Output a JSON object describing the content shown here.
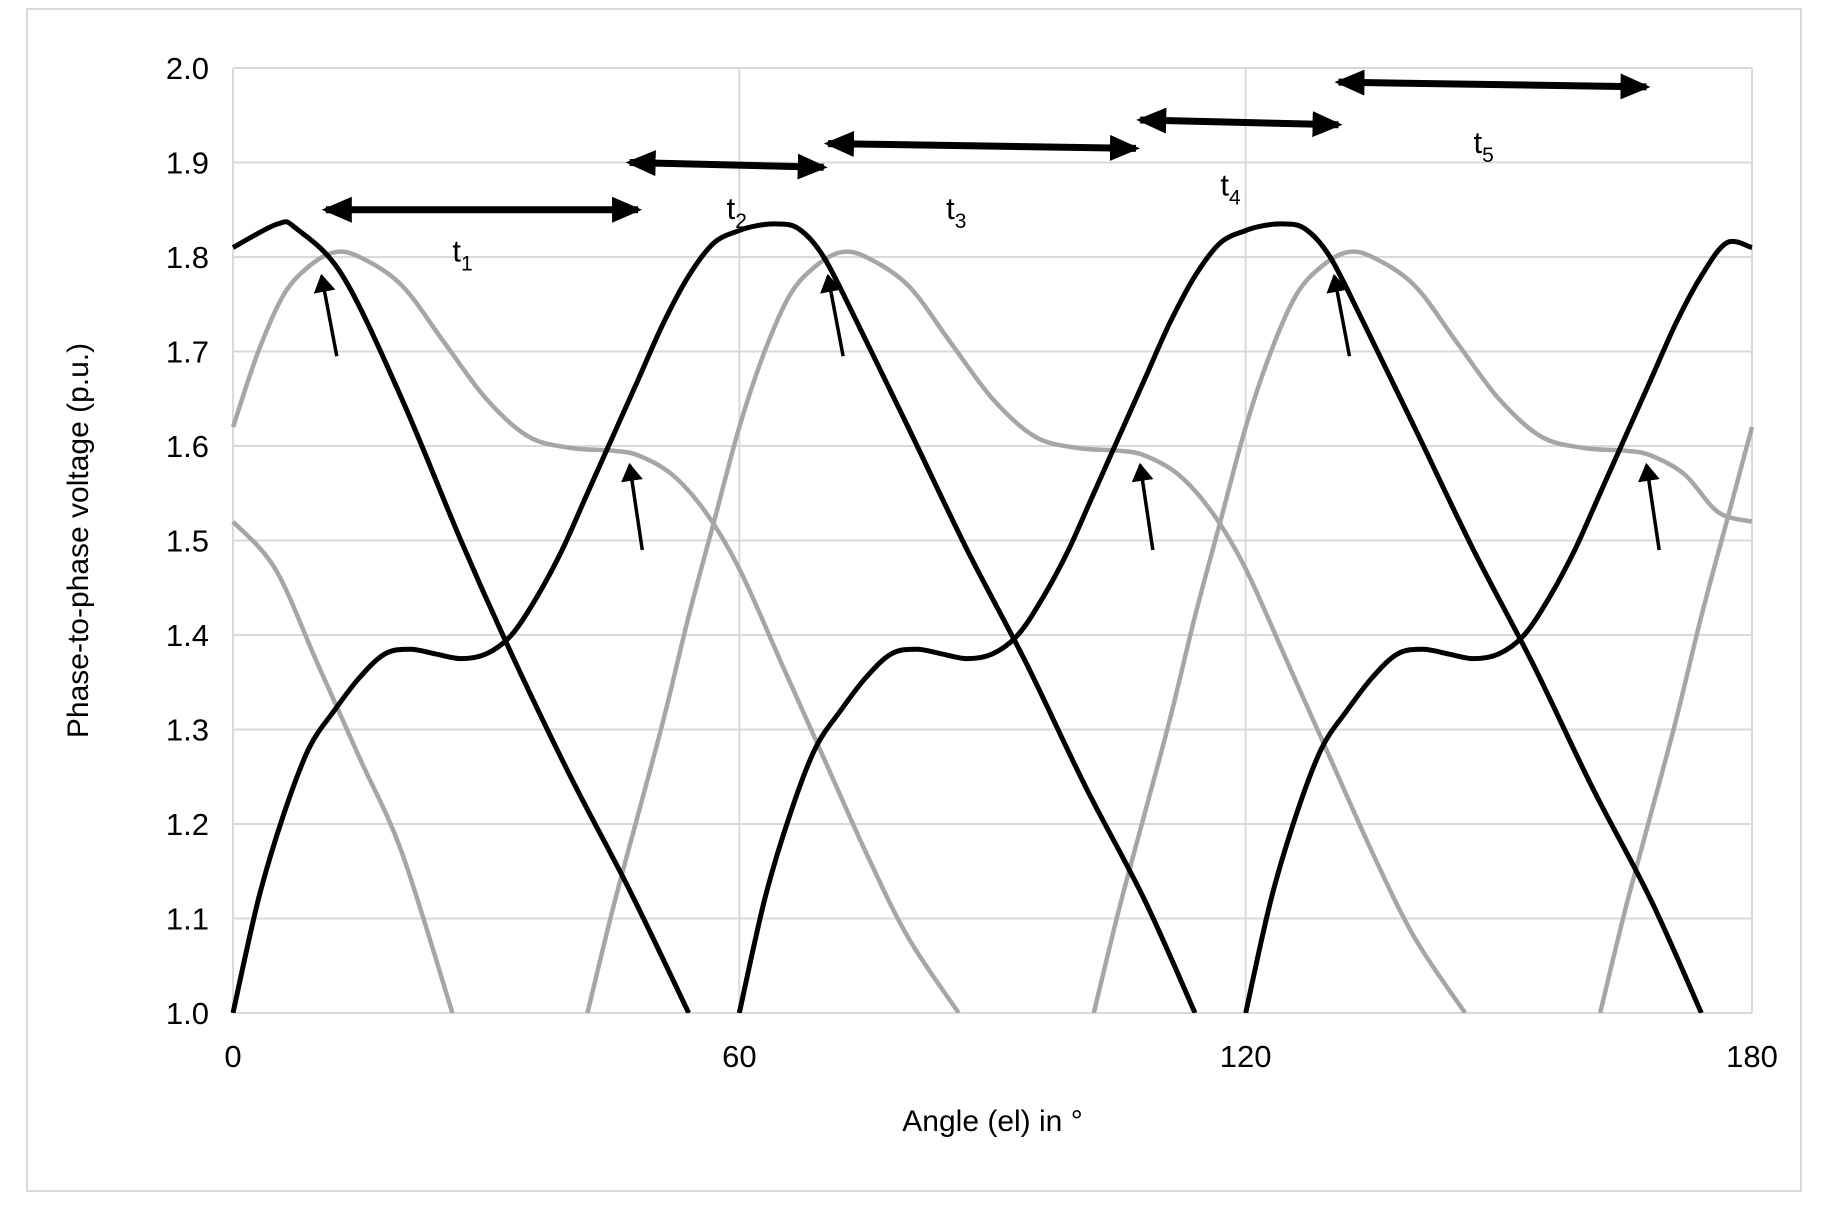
{
  "chart_data": {
    "type": "line",
    "title": "",
    "xlabel": "Angle (el) in °",
    "ylabel": "Phase-to-phase voltage (p.u.)",
    "xlim": [
      0,
      180
    ],
    "ylim": [
      1.0,
      2.0
    ],
    "x_ticks": [
      "0",
      "60",
      "120",
      "180"
    ],
    "x_tick_values": [
      0,
      60,
      120,
      180
    ],
    "y_ticks": [
      "1.0",
      "1.1",
      "1.2",
      "1.3",
      "1.4",
      "1.5",
      "1.6",
      "1.7",
      "1.8",
      "1.9",
      "2.0"
    ],
    "y_tick_values": [
      1.0,
      1.1,
      1.2,
      1.3,
      1.4,
      1.5,
      1.6,
      1.7,
      1.8,
      1.9,
      2.0
    ],
    "grid": true,
    "legend": "none",
    "colors": {
      "black": "#000000",
      "gray": "#a6a6a6",
      "grid": "#d9d9d9"
    },
    "series": [
      {
        "color": "black",
        "x": [
          0,
          5.3,
          7.5,
          13,
          20,
          27,
          33,
          40,
          47,
          54
        ],
        "y": [
          1.81,
          1.835,
          1.83,
          1.78,
          1.65,
          1.5,
          1.38,
          1.25,
          1.13,
          1.0
        ]
      },
      {
        "color": "black",
        "x": [
          0,
          3,
          6,
          9,
          12,
          15,
          18,
          21,
          24,
          27,
          30,
          33,
          36,
          39,
          42,
          45,
          48,
          51,
          54,
          57,
          60,
          62,
          64.3,
          67,
          70,
          74,
          80,
          87,
          94,
          101,
          108,
          114
        ],
        "y": [
          1.0,
          1.12,
          1.21,
          1.28,
          1.32,
          1.355,
          1.38,
          1.385,
          1.38,
          1.375,
          1.38,
          1.4,
          1.44,
          1.49,
          1.55,
          1.61,
          1.67,
          1.73,
          1.78,
          1.815,
          1.828,
          1.833,
          1.835,
          1.83,
          1.8,
          1.73,
          1.62,
          1.49,
          1.37,
          1.24,
          1.12,
          1.0
        ]
      },
      {
        "color": "black",
        "x": [
          60,
          63,
          66,
          69,
          72,
          75,
          78,
          81,
          84,
          87,
          90,
          93,
          96,
          99,
          102,
          105,
          108,
          111,
          114,
          117,
          120,
          122,
          124.3,
          127,
          130,
          134,
          140,
          147,
          154,
          161,
          168,
          174
        ],
        "y": [
          1.0,
          1.12,
          1.21,
          1.28,
          1.32,
          1.355,
          1.38,
          1.385,
          1.38,
          1.375,
          1.38,
          1.4,
          1.44,
          1.49,
          1.55,
          1.61,
          1.67,
          1.73,
          1.78,
          1.815,
          1.828,
          1.833,
          1.835,
          1.83,
          1.8,
          1.73,
          1.62,
          1.49,
          1.37,
          1.24,
          1.12,
          1.0
        ]
      },
      {
        "color": "black",
        "x": [
          120,
          123,
          126,
          129,
          132,
          135,
          138,
          141,
          144,
          147,
          150,
          153,
          156,
          159,
          162,
          165,
          168,
          171,
          174,
          177,
          180
        ],
        "y": [
          1.0,
          1.12,
          1.21,
          1.28,
          1.32,
          1.355,
          1.38,
          1.385,
          1.38,
          1.375,
          1.38,
          1.4,
          1.44,
          1.49,
          1.55,
          1.61,
          1.67,
          1.73,
          1.78,
          1.815,
          1.81
        ]
      },
      {
        "color": "gray",
        "x": [
          0,
          3,
          6,
          9,
          12,
          15,
          20,
          25,
          30,
          35,
          40,
          45,
          48,
          52,
          56,
          60,
          65,
          70,
          75,
          80,
          86
        ],
        "y": [
          1.62,
          1.7,
          1.76,
          1.79,
          1.805,
          1.8,
          1.77,
          1.71,
          1.65,
          1.61,
          1.598,
          1.595,
          1.59,
          1.57,
          1.53,
          1.47,
          1.37,
          1.27,
          1.17,
          1.08,
          1.0
        ]
      },
      {
        "color": "gray",
        "x": [
          42,
          45,
          48,
          51,
          54,
          57,
          60,
          63,
          66,
          69,
          72,
          75,
          80,
          85,
          90,
          95,
          100,
          105,
          108,
          112,
          116,
          120,
          125,
          130,
          135,
          140,
          146
        ],
        "y": [
          1.0,
          1.11,
          1.21,
          1.31,
          1.42,
          1.52,
          1.62,
          1.7,
          1.76,
          1.79,
          1.805,
          1.8,
          1.77,
          1.71,
          1.65,
          1.61,
          1.598,
          1.595,
          1.59,
          1.57,
          1.53,
          1.47,
          1.37,
          1.27,
          1.17,
          1.08,
          1.0
        ]
      },
      {
        "color": "gray",
        "x": [
          102,
          105,
          108,
          111,
          114,
          117,
          120,
          123,
          126,
          129,
          132,
          135,
          140,
          145,
          150,
          155,
          160,
          165,
          168,
          172,
          176,
          180
        ],
        "y": [
          1.0,
          1.11,
          1.21,
          1.31,
          1.42,
          1.52,
          1.62,
          1.7,
          1.76,
          1.79,
          1.805,
          1.8,
          1.77,
          1.71,
          1.65,
          1.61,
          1.598,
          1.595,
          1.59,
          1.57,
          1.53,
          1.52
        ]
      },
      {
        "color": "gray",
        "x": [
          162,
          165,
          168,
          171,
          174,
          177,
          180
        ],
        "y": [
          1.0,
          1.11,
          1.21,
          1.31,
          1.42,
          1.52,
          1.62
        ]
      },
      {
        "color": "gray",
        "x": [
          0,
          5,
          10,
          15,
          20,
          26
        ],
        "y": [
          1.52,
          1.47,
          1.37,
          1.27,
          1.17,
          1.0
        ]
      }
    ],
    "annotations": {
      "intervals": [
        {
          "label": "t",
          "sub": "1",
          "x_start": 11,
          "x_end": 48,
          "y_start": 1.85,
          "y_end": 1.85,
          "label_x": 26,
          "label_y": 1.795
        },
        {
          "label": "t",
          "sub": "2",
          "x_start": 47,
          "x_end": 70,
          "y_start": 1.9,
          "y_end": 1.895,
          "label_x": 58.5,
          "label_y": 1.84
        },
        {
          "label": "t",
          "sub": "3",
          "x_start": 70.5,
          "x_end": 107,
          "y_start": 1.92,
          "y_end": 1.915,
          "label_x": 84.5,
          "label_y": 1.84
        },
        {
          "label": "t",
          "sub": "4",
          "x_start": 107.5,
          "x_end": 131,
          "y_start": 1.945,
          "y_end": 1.94,
          "label_x": 117,
          "label_y": 1.865
        },
        {
          "label": "t",
          "sub": "5",
          "x_start": 131,
          "x_end": 167.5,
          "y_start": 1.985,
          "y_end": 1.98,
          "label_x": 147,
          "label_y": 1.91
        }
      ],
      "arrows": [
        {
          "x_tail": 12.3,
          "y_tail": 1.695,
          "x_head": 10.5,
          "y_head": 1.78
        },
        {
          "x_tail": 48.5,
          "y_tail": 1.49,
          "x_head": 47,
          "y_head": 1.58
        },
        {
          "x_tail": 72.3,
          "y_tail": 1.695,
          "x_head": 70.5,
          "y_head": 1.78
        },
        {
          "x_tail": 109,
          "y_tail": 1.49,
          "x_head": 107.5,
          "y_head": 1.58
        },
        {
          "x_tail": 132.3,
          "y_tail": 1.695,
          "x_head": 130.5,
          "y_head": 1.78
        },
        {
          "x_tail": 169,
          "y_tail": 1.49,
          "x_head": 167.5,
          "y_head": 1.58
        }
      ]
    }
  }
}
